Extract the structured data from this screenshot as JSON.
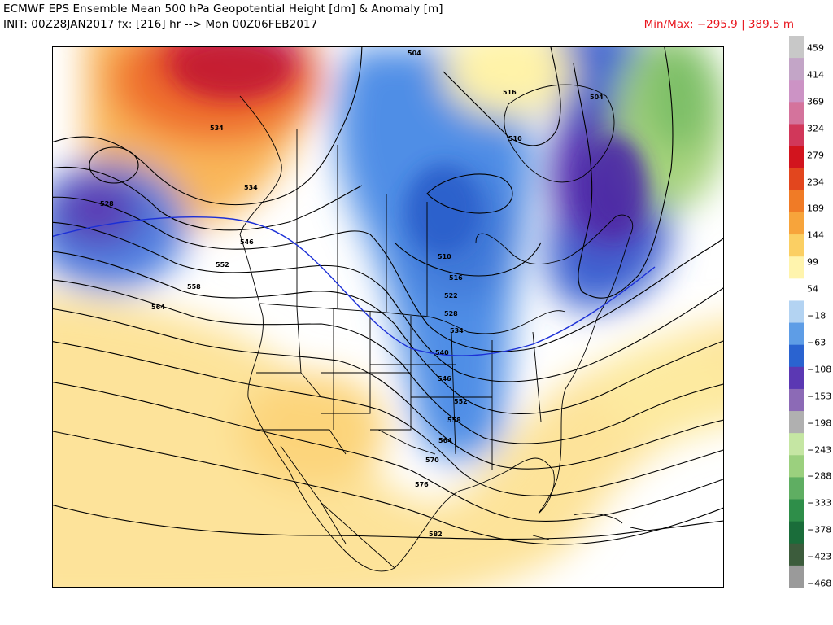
{
  "header": {
    "title": "ECMWF EPS Ensemble Mean 500 hPa Geopotential Height [dm] & Anomaly [m]",
    "init": "INIT: 00Z28JAN2017 fx: [216] hr --> Mon 00Z06FEB2017",
    "minmax": "Min/Max: −295.9 | 389.5 m"
  },
  "colorbar": {
    "labels": [
      "459",
      "414",
      "369",
      "324",
      "279",
      "234",
      "189",
      "144",
      "99",
      "54",
      "−18",
      "−63",
      "−108",
      "−153",
      "−198",
      "−243",
      "−288",
      "−333",
      "−378",
      "−423",
      "−468"
    ],
    "colors": [
      "#c8c8c8",
      "#c3a5c7",
      "#cc93c5",
      "#d4739c",
      "#d1375a",
      "#d2141e",
      "#e2461e",
      "#f07b26",
      "#f7a43b",
      "#fbcf63",
      "#fff4ad",
      "#ffffff",
      "#b3d3f2",
      "#5e9de6",
      "#2a63d0",
      "#5b38b3",
      "#8c6ab6",
      "#b0b0b0",
      "#c5e6a3",
      "#9bd07e",
      "#5fae62",
      "#2e8e49",
      "#1a6d3a",
      "#3c5c3c",
      "#9a9a9a"
    ]
  },
  "contour_labels": [
    "504",
    "516",
    "510",
    "504",
    "534",
    "528",
    "534",
    "546",
    "552",
    "558",
    "564",
    "510",
    "516",
    "522",
    "528",
    "534",
    "540",
    "546",
    "552",
    "558",
    "564",
    "570",
    "576",
    "582"
  ]
}
